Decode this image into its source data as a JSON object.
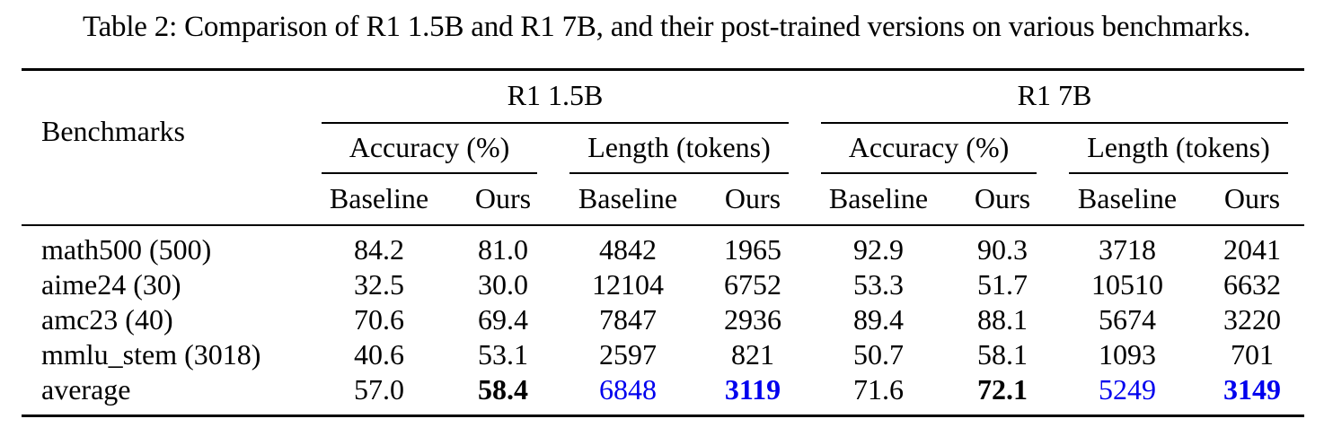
{
  "caption": "Table 2: Comparison of R1 1.5B and R1 7B, and their post-trained versions on various benchmarks.",
  "header": {
    "benchmarks": "Benchmarks",
    "models": [
      "R1 1.5B",
      "R1 7B"
    ],
    "metrics": [
      "Accuracy (%)",
      "Length (tokens)",
      "Accuracy (%)",
      "Length (tokens)"
    ],
    "columns": [
      "Baseline",
      "Ours",
      "Baseline",
      "Ours",
      "Baseline",
      "Ours",
      "Baseline",
      "Ours"
    ]
  },
  "rows": [
    {
      "name": "math500 (500)",
      "values": [
        "84.2",
        "81.0",
        "4842",
        "1965",
        "92.9",
        "90.3",
        "3718",
        "2041"
      ]
    },
    {
      "name": "aime24 (30)",
      "values": [
        "32.5",
        "30.0",
        "12104",
        "6752",
        "53.3",
        "51.7",
        "10510",
        "6632"
      ]
    },
    {
      "name": "amc23 (40)",
      "values": [
        "70.6",
        "69.4",
        "7847",
        "2936",
        "89.4",
        "88.1",
        "5674",
        "3220"
      ]
    },
    {
      "name": "mmlu_stem (3018)",
      "values": [
        "40.6",
        "53.1",
        "2597",
        "821",
        "50.7",
        "58.1",
        "1093",
        "701"
      ]
    },
    {
      "name": "average",
      "values": [
        "57.0",
        "58.4",
        "6848",
        "3119",
        "71.6",
        "72.1",
        "5249",
        "3149"
      ]
    }
  ],
  "styles": {
    "highlight_color": "#0000ee",
    "average_bold_columns": [
      1,
      3,
      5,
      7
    ],
    "average_blue_columns": [
      2,
      3,
      6,
      7
    ]
  }
}
